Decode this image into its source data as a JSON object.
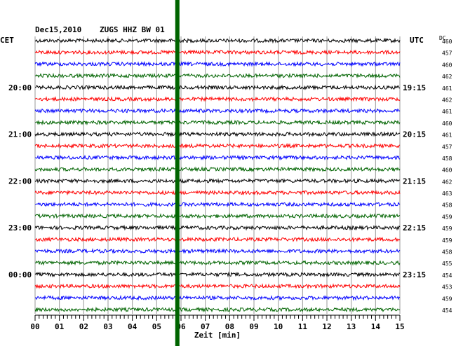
{
  "header": {
    "date": "Dec15,2010",
    "station": "ZUGS HHZ BW 01",
    "left_tz": "CET",
    "right_tz": "UTC",
    "dc_label": "DC"
  },
  "chart_data": {
    "type": "line",
    "title": "Dec15,2010   ZUGS HHZ BW 01",
    "xlabel": "Zeit [min]",
    "xlim": [
      0,
      15
    ],
    "x_ticks": [
      "00",
      "01",
      "02",
      "03",
      "04",
      "05",
      "06",
      "07",
      "08",
      "09",
      "10",
      "11",
      "12",
      "13",
      "14",
      "15"
    ],
    "rows": 24,
    "colors": [
      "#000000",
      "#ff0000",
      "#0000ff",
      "#006400"
    ],
    "left_time_labels": [
      {
        "row": 4,
        "text": "20:00"
      },
      {
        "row": 8,
        "text": "21:00"
      },
      {
        "row": 12,
        "text": "22:00"
      },
      {
        "row": 16,
        "text": "23:00"
      },
      {
        "row": 20,
        "text": "00:00"
      }
    ],
    "right_time_labels": [
      {
        "row": 4,
        "text": "19:15"
      },
      {
        "row": 8,
        "text": "20:15"
      },
      {
        "row": 12,
        "text": "21:15"
      },
      {
        "row": 16,
        "text": "22:15"
      },
      {
        "row": 20,
        "text": "23:15"
      }
    ],
    "dc_values": [
      "460",
      "457",
      "460",
      "462",
      "461",
      "462",
      "461",
      "460",
      "461",
      "457",
      "458",
      "460",
      "462",
      "463",
      "458",
      "459",
      "459",
      "459",
      "458",
      "455",
      "454",
      "453",
      "459",
      "454"
    ],
    "marker": {
      "x_min": 5.85,
      "color": "#006400"
    },
    "grid": true
  }
}
